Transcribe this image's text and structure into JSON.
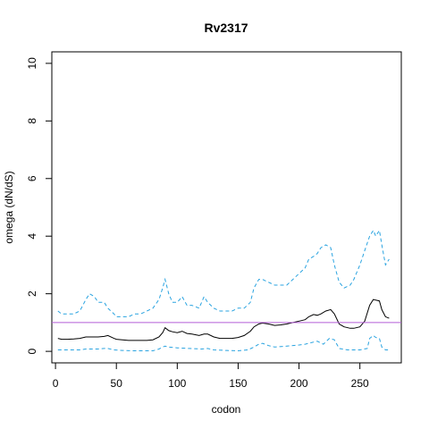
{
  "chart_data": {
    "type": "line",
    "title": "Rv2317",
    "xlabel": "codon",
    "ylabel": "omega (dN/dS)",
    "xlim": [
      -3,
      284
    ],
    "ylim": [
      -0.4,
      10.4
    ],
    "xticks": [
      0,
      50,
      100,
      150,
      200,
      250
    ],
    "yticks": [
      0,
      2,
      4,
      6,
      8,
      10
    ],
    "grid": false,
    "legend": "none",
    "reference_line": {
      "y": 1,
      "color": "#b35cd6"
    },
    "series": [
      {
        "line_style": "dashed",
        "color": "#29a3e0",
        "role": "upper",
        "x": [
          2,
          5,
          10,
          15,
          20,
          25,
          28,
          32,
          35,
          40,
          43,
          48,
          50,
          55,
          60,
          65,
          70,
          75,
          80,
          85,
          88,
          90,
          93,
          96,
          100,
          104,
          108,
          112,
          118,
          122,
          125,
          130,
          135,
          140,
          145,
          150,
          155,
          160,
          163,
          167,
          170,
          175,
          180,
          185,
          190,
          195,
          200,
          205,
          208,
          212,
          215,
          218,
          222,
          226,
          229,
          233,
          237,
          242,
          245,
          250,
          254,
          258,
          261,
          263,
          266,
          268,
          271,
          274
        ],
        "y": [
          1.4,
          1.3,
          1.3,
          1.3,
          1.4,
          1.8,
          2.0,
          1.9,
          1.7,
          1.7,
          1.5,
          1.3,
          1.2,
          1.2,
          1.2,
          1.3,
          1.3,
          1.4,
          1.5,
          1.8,
          2.2,
          2.5,
          2.0,
          1.7,
          1.7,
          1.9,
          1.6,
          1.6,
          1.5,
          1.9,
          1.7,
          1.5,
          1.4,
          1.4,
          1.4,
          1.5,
          1.5,
          1.7,
          2.2,
          2.5,
          2.5,
          2.4,
          2.3,
          2.3,
          2.3,
          2.5,
          2.7,
          2.9,
          3.2,
          3.3,
          3.4,
          3.6,
          3.7,
          3.6,
          3.0,
          2.4,
          2.2,
          2.3,
          2.5,
          3.0,
          3.5,
          4.0,
          4.2,
          4.0,
          4.2,
          3.7,
          3.0,
          3.2
        ]
      },
      {
        "line_style": "solid",
        "color": "#000000",
        "role": "estimate",
        "x": [
          2,
          5,
          10,
          15,
          20,
          25,
          30,
          35,
          40,
          43,
          48,
          50,
          55,
          60,
          65,
          70,
          75,
          80,
          85,
          88,
          90,
          93,
          96,
          100,
          104,
          108,
          112,
          118,
          122,
          125,
          130,
          135,
          140,
          145,
          150,
          155,
          160,
          163,
          167,
          170,
          175,
          180,
          185,
          190,
          195,
          200,
          205,
          208,
          212,
          215,
          218,
          222,
          226,
          229,
          233,
          237,
          242,
          245,
          250,
          254,
          258,
          261,
          263,
          266,
          268,
          271,
          274
        ],
        "y": [
          0.45,
          0.42,
          0.42,
          0.43,
          0.45,
          0.5,
          0.5,
          0.5,
          0.52,
          0.55,
          0.45,
          0.42,
          0.4,
          0.38,
          0.38,
          0.38,
          0.38,
          0.4,
          0.5,
          0.65,
          0.82,
          0.72,
          0.68,
          0.65,
          0.7,
          0.62,
          0.6,
          0.55,
          0.6,
          0.6,
          0.5,
          0.45,
          0.45,
          0.45,
          0.48,
          0.55,
          0.7,
          0.85,
          0.95,
          0.98,
          0.95,
          0.9,
          0.92,
          0.95,
          1.0,
          1.05,
          1.1,
          1.2,
          1.28,
          1.25,
          1.3,
          1.4,
          1.45,
          1.3,
          0.95,
          0.85,
          0.8,
          0.8,
          0.85,
          1.05,
          1.6,
          1.8,
          1.78,
          1.75,
          1.45,
          1.2,
          1.15
        ]
      },
      {
        "line_style": "dashed",
        "color": "#29a3e0",
        "role": "lower",
        "x": [
          2,
          10,
          20,
          25,
          30,
          35,
          40,
          43,
          48,
          55,
          65,
          75,
          80,
          85,
          88,
          90,
          93,
          100,
          110,
          120,
          125,
          130,
          140,
          150,
          158,
          163,
          167,
          170,
          175,
          180,
          190,
          200,
          205,
          210,
          215,
          220,
          225,
          229,
          233,
          240,
          250,
          256,
          258,
          261,
          263,
          266,
          268,
          271,
          274
        ],
        "y": [
          0.05,
          0.05,
          0.05,
          0.08,
          0.08,
          0.08,
          0.1,
          0.1,
          0.05,
          0.03,
          0.02,
          0.02,
          0.02,
          0.08,
          0.15,
          0.18,
          0.15,
          0.12,
          0.1,
          0.08,
          0.1,
          0.05,
          0.03,
          0.02,
          0.05,
          0.15,
          0.25,
          0.28,
          0.2,
          0.15,
          0.18,
          0.22,
          0.25,
          0.3,
          0.35,
          0.25,
          0.45,
          0.4,
          0.1,
          0.05,
          0.05,
          0.1,
          0.45,
          0.55,
          0.48,
          0.45,
          0.15,
          0.05,
          0.05
        ]
      }
    ]
  }
}
